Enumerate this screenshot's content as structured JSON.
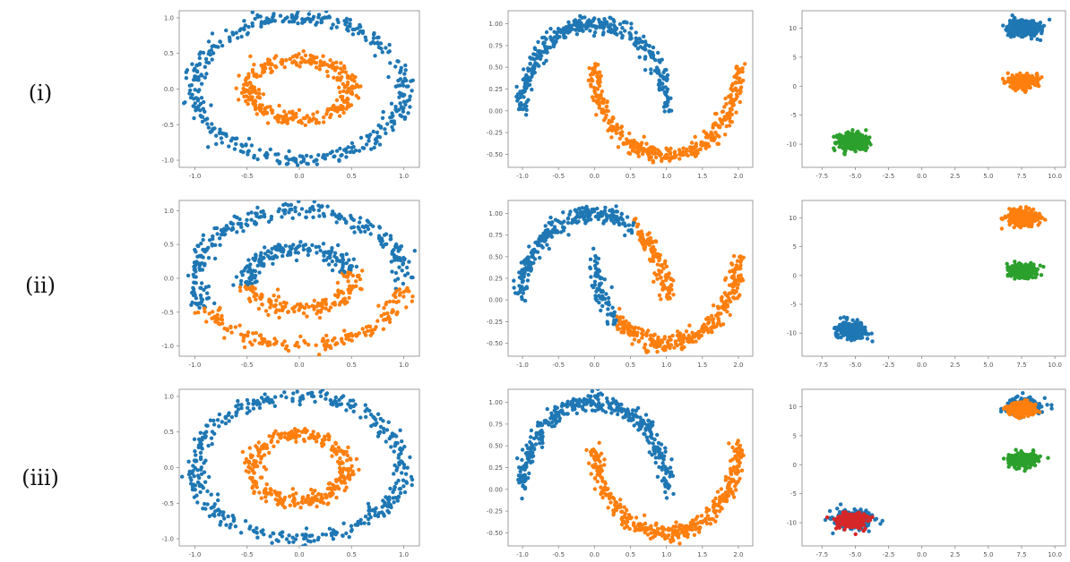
{
  "row_labels": [
    "(i)",
    "(ii)",
    "(iii)"
  ],
  "colors": {
    "blue": "#1f77b4",
    "orange": "#ff7f0e",
    "green": "#2ca02c",
    "red": "#d62728",
    "axis": "#888888",
    "tick_text": "#555555"
  },
  "chart_data": [
    {
      "type": "scatter",
      "row": 0,
      "col": 0,
      "dataset": "circles",
      "xlim": [
        -1.15,
        1.15
      ],
      "ylim": [
        -1.1,
        1.1
      ],
      "xticks": [
        "-1.0",
        "-0.5",
        "0.0",
        "0.5",
        "1.0"
      ],
      "yticks": [
        "-1.0",
        "-0.5",
        "0.0",
        "0.5",
        "1.0"
      ],
      "series": [
        {
          "shape": "ring",
          "cx": 0,
          "cy": 0,
          "r": 1.0,
          "ry": 1.0,
          "noise": 0.05,
          "n": 420,
          "color": "blue"
        },
        {
          "shape": "ring",
          "cx": 0,
          "cy": 0,
          "r": 0.5,
          "ry": 0.42,
          "noise": 0.05,
          "n": 320,
          "color": "orange"
        }
      ]
    },
    {
      "type": "scatter",
      "row": 0,
      "col": 1,
      "dataset": "moons",
      "xlim": [
        -1.2,
        2.2
      ],
      "ylim": [
        -0.65,
        1.15
      ],
      "xticks": [
        "-1.0",
        "-0.5",
        "0.0",
        "0.5",
        "1.0",
        "1.5",
        "2.0"
      ],
      "yticks": [
        "-0.50",
        "-0.25",
        "0.00",
        "0.25",
        "0.50",
        "0.75",
        "1.00"
      ],
      "series": [
        {
          "shape": "upper_moon",
          "noise": 0.05,
          "n": 380,
          "color": "blue"
        },
        {
          "shape": "lower_moon",
          "noise": 0.05,
          "n": 380,
          "color": "orange"
        }
      ]
    },
    {
      "type": "scatter",
      "row": 0,
      "col": 2,
      "dataset": "blobs",
      "xlim": [
        -9,
        10.8
      ],
      "ylim": [
        -14,
        13
      ],
      "xticks": [
        "-7.5",
        "-5.0",
        "-2.5",
        "0.0",
        "2.5",
        "5.0",
        "7.5",
        "10.0"
      ],
      "yticks": [
        "-10",
        "-5",
        "0",
        "5",
        "10"
      ],
      "series": [
        {
          "shape": "blob",
          "cx": 7.6,
          "cy": 10,
          "sx": 1.0,
          "sy": 0.9,
          "n": 320,
          "color": "blue"
        },
        {
          "shape": "blob",
          "cx": 7.6,
          "cy": 0.8,
          "sx": 1.0,
          "sy": 0.8,
          "n": 300,
          "color": "orange"
        },
        {
          "shape": "blob",
          "cx": -5.2,
          "cy": -9.5,
          "sx": 1.0,
          "sy": 0.9,
          "n": 320,
          "color": "green"
        }
      ]
    },
    {
      "type": "scatter",
      "row": 1,
      "col": 0,
      "dataset": "circles",
      "xlim": [
        -1.15,
        1.15
      ],
      "ylim": [
        -1.15,
        1.15
      ],
      "xticks": [
        "-1.0",
        "-0.5",
        "0.0",
        "0.5",
        "1.0"
      ],
      "yticks": [
        "-1.0",
        "-0.5",
        "0.0",
        "0.5",
        "1.0"
      ],
      "series": [
        {
          "shape": "ring_split",
          "cx": 0,
          "cy": 0,
          "r": 1.0,
          "ry": 1.0,
          "noise": 0.06,
          "n": 440,
          "above": -0.3,
          "slope": 0.15,
          "color_above": "blue",
          "color_below": "orange"
        },
        {
          "shape": "ring_split",
          "cx": 0,
          "cy": 0,
          "r": 0.5,
          "ry": 0.45,
          "noise": 0.06,
          "n": 320,
          "above": 0.0,
          "slope": 0.2,
          "color_above": "blue",
          "color_below": "orange"
        }
      ]
    },
    {
      "type": "scatter",
      "row": 1,
      "col": 1,
      "dataset": "moons",
      "xlim": [
        -1.2,
        2.2
      ],
      "ylim": [
        -0.65,
        1.15
      ],
      "xticks": [
        "-1.0",
        "-0.5",
        "0.0",
        "0.5",
        "1.0",
        "1.5",
        "2.0"
      ],
      "yticks": [
        "-0.50",
        "-0.25",
        "0.00",
        "0.25",
        "0.50",
        "0.75",
        "1.00"
      ],
      "series": [
        {
          "shape": "upper_moon_split",
          "noise": 0.05,
          "n": 380,
          "split_x": 0.55,
          "color_left": "blue",
          "color_right": "orange"
        },
        {
          "shape": "lower_moon_split",
          "noise": 0.05,
          "n": 380,
          "split_x": 0.3,
          "color_left": "blue",
          "color_right": "orange"
        }
      ]
    },
    {
      "type": "scatter",
      "row": 1,
      "col": 2,
      "dataset": "blobs",
      "xlim": [
        -9,
        10.8
      ],
      "ylim": [
        -14,
        13
      ],
      "xticks": [
        "-7.5",
        "-5.0",
        "-2.5",
        "0.0",
        "2.5",
        "5.0",
        "7.5",
        "10.0"
      ],
      "yticks": [
        "-10",
        "-5",
        "0",
        "5",
        "10"
      ],
      "series": [
        {
          "shape": "blob",
          "cx": 7.6,
          "cy": 10,
          "sx": 1.0,
          "sy": 0.9,
          "n": 320,
          "color": "orange"
        },
        {
          "shape": "blob",
          "cx": 7.6,
          "cy": 0.8,
          "sx": 1.0,
          "sy": 0.8,
          "n": 300,
          "color": "green"
        },
        {
          "shape": "blob",
          "cx": -5.2,
          "cy": -9.5,
          "sx": 1.0,
          "sy": 0.9,
          "n": 320,
          "color": "blue"
        }
      ]
    },
    {
      "type": "scatter",
      "row": 2,
      "col": 0,
      "dataset": "circles",
      "xlim": [
        -1.15,
        1.15
      ],
      "ylim": [
        -1.1,
        1.1
      ],
      "xticks": [
        "-1.0",
        "-0.5",
        "0.0",
        "0.5",
        "1.0"
      ],
      "yticks": [
        "-1.0",
        "-0.5",
        "0.0",
        "0.5",
        "1.0"
      ],
      "series": [
        {
          "shape": "ring",
          "cx": 0,
          "cy": 0,
          "r": 1.0,
          "ry": 1.0,
          "noise": 0.05,
          "n": 420,
          "color": "blue"
        },
        {
          "shape": "ring",
          "cx": 0,
          "cy": 0,
          "r": 0.45,
          "ry": 0.48,
          "noise": 0.05,
          "n": 320,
          "color": "orange"
        }
      ]
    },
    {
      "type": "scatter",
      "row": 2,
      "col": 1,
      "dataset": "moons",
      "xlim": [
        -1.2,
        2.2
      ],
      "ylim": [
        -0.65,
        1.15
      ],
      "xticks": [
        "-1.0",
        "-0.5",
        "0.0",
        "0.5",
        "1.0",
        "1.5",
        "2.0"
      ],
      "yticks": [
        "-0.50",
        "-0.25",
        "0.00",
        "0.25",
        "0.50",
        "0.75",
        "1.00"
      ],
      "series": [
        {
          "shape": "upper_moon",
          "noise": 0.05,
          "n": 380,
          "color": "blue"
        },
        {
          "shape": "lower_moon",
          "noise": 0.05,
          "n": 380,
          "color": "orange"
        }
      ]
    },
    {
      "type": "scatter",
      "row": 2,
      "col": 2,
      "dataset": "blobs",
      "xlim": [
        -9,
        10.8
      ],
      "ylim": [
        -14,
        13
      ],
      "xticks": [
        "-7.5",
        "-5.0",
        "-2.5",
        "0.0",
        "2.5",
        "5.0",
        "7.5",
        "10.0"
      ],
      "yticks": [
        "-10",
        "-5",
        "0",
        "5",
        "10"
      ],
      "series": [
        {
          "shape": "blob",
          "cx": 7.6,
          "cy": 10,
          "sx": 1.2,
          "sy": 1.0,
          "n": 240,
          "color": "blue"
        },
        {
          "shape": "blob",
          "cx": 7.6,
          "cy": 9.6,
          "sx": 0.9,
          "sy": 0.75,
          "n": 300,
          "color": "orange"
        },
        {
          "shape": "blob",
          "cx": 7.6,
          "cy": 0.8,
          "sx": 1.0,
          "sy": 0.8,
          "n": 300,
          "color": "green"
        },
        {
          "shape": "blob",
          "cx": -5.2,
          "cy": -9.5,
          "sx": 1.3,
          "sy": 1.05,
          "n": 220,
          "color": "blue"
        },
        {
          "shape": "blob",
          "cx": -5.2,
          "cy": -9.6,
          "sx": 0.95,
          "sy": 0.8,
          "n": 300,
          "color": "red"
        }
      ]
    }
  ]
}
